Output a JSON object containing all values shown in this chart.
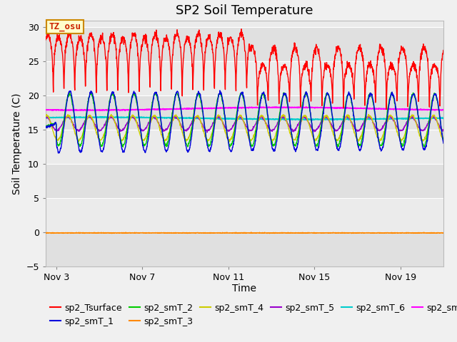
{
  "title": "SP2 Soil Temperature",
  "ylabel": "Soil Temperature (C)",
  "xlabel": "Time",
  "xlim_days": [
    2.5,
    21.0
  ],
  "ylim": [
    -5,
    31
  ],
  "yticks": [
    -5,
    0,
    5,
    10,
    15,
    20,
    25,
    30
  ],
  "xtick_positions": [
    3,
    7,
    11,
    15,
    19
  ],
  "xtick_labels": [
    "Nov 3",
    "Nov 7",
    "Nov 11",
    "Nov 15",
    "Nov 19"
  ],
  "series_colors": {
    "sp2_Tsurface": "#ff0000",
    "sp2_smT_1": "#0000dd",
    "sp2_smT_2": "#00cc00",
    "sp2_smT_3": "#ff8800",
    "sp2_smT_4": "#cccc00",
    "sp2_smT_5": "#9900cc",
    "sp2_smT_6": "#00cccc",
    "sp2_smT_7": "#ff00ff"
  },
  "annotation_text": "TZ_osu",
  "bg_color": "#f0f0f0",
  "band_dark": "#e0e0e0",
  "band_light": "#ebebeb",
  "title_fontsize": 13,
  "axis_label_fontsize": 10,
  "tick_fontsize": 9,
  "legend_fontsize": 9
}
